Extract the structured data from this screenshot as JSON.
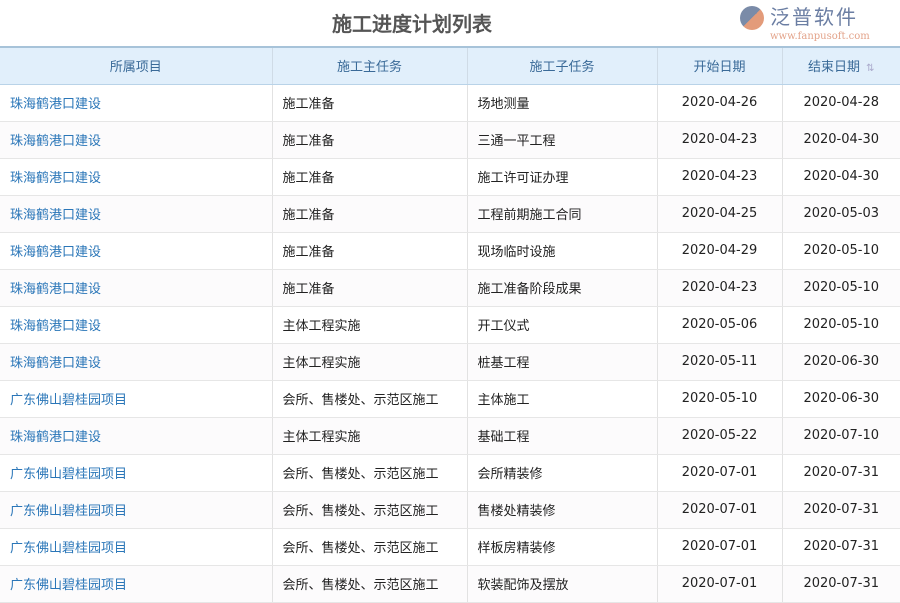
{
  "title": "施工进度计划列表",
  "columns": [
    "所属项目",
    "施工主任务",
    "施工子任务",
    "开始日期",
    "结束日期"
  ],
  "sort_icon": "sort-icon",
  "rows": [
    [
      "珠海鹤港口建设",
      "施工准备",
      "场地测量",
      "2020-04-26",
      "2020-04-28"
    ],
    [
      "珠海鹤港口建设",
      "施工准备",
      "三通一平工程",
      "2020-04-23",
      "2020-04-30"
    ],
    [
      "珠海鹤港口建设",
      "施工准备",
      "施工许可证办理",
      "2020-04-23",
      "2020-04-30"
    ],
    [
      "珠海鹤港口建设",
      "施工准备",
      "工程前期施工合同",
      "2020-04-25",
      "2020-05-03"
    ],
    [
      "珠海鹤港口建设",
      "施工准备",
      "现场临时设施",
      "2020-04-29",
      "2020-05-10"
    ],
    [
      "珠海鹤港口建设",
      "施工准备",
      "施工准备阶段成果",
      "2020-04-23",
      "2020-05-10"
    ],
    [
      "珠海鹤港口建设",
      "主体工程实施",
      "开工仪式",
      "2020-05-06",
      "2020-05-10"
    ],
    [
      "珠海鹤港口建设",
      "主体工程实施",
      "桩基工程",
      "2020-05-11",
      "2020-06-30"
    ],
    [
      "广东佛山碧桂园项目",
      "会所、售楼处、示范区施工",
      "主体施工",
      "2020-05-10",
      "2020-06-30"
    ],
    [
      "珠海鹤港口建设",
      "主体工程实施",
      "基础工程",
      "2020-05-22",
      "2020-07-10"
    ],
    [
      "广东佛山碧桂园项目",
      "会所、售楼处、示范区施工",
      "会所精装修",
      "2020-07-01",
      "2020-07-31"
    ],
    [
      "广东佛山碧桂园项目",
      "会所、售楼处、示范区施工",
      "售楼处精装修",
      "2020-07-01",
      "2020-07-31"
    ],
    [
      "广东佛山碧桂园项目",
      "会所、售楼处、示范区施工",
      "样板房精装修",
      "2020-07-01",
      "2020-07-31"
    ],
    [
      "广东佛山碧桂园项目",
      "会所、售楼处、示范区施工",
      "软装配饰及摆放",
      "2020-07-01",
      "2020-07-31"
    ]
  ],
  "watermark": {
    "name": "泛普软件",
    "url": "www.fanpusoft.com"
  }
}
